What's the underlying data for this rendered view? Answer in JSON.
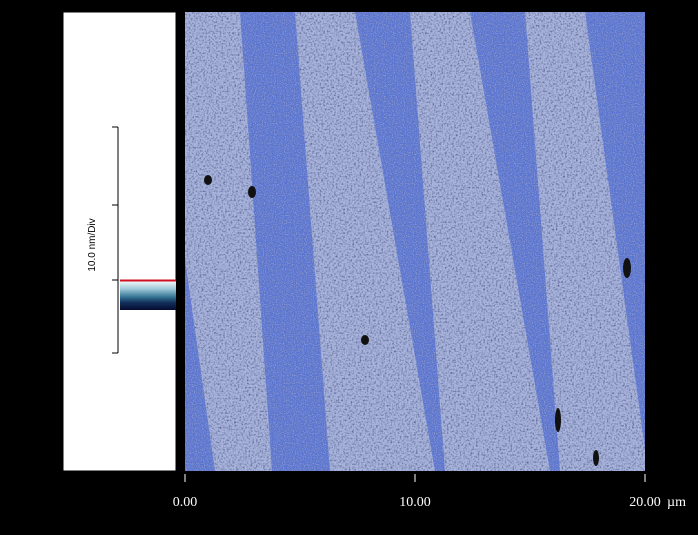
{
  "scale_bar": {
    "label": "10.0 nm/Div"
  },
  "x_axis": {
    "tick_labels": [
      "0.00",
      "10.00",
      "20.00"
    ],
    "unit": "µm"
  }
}
